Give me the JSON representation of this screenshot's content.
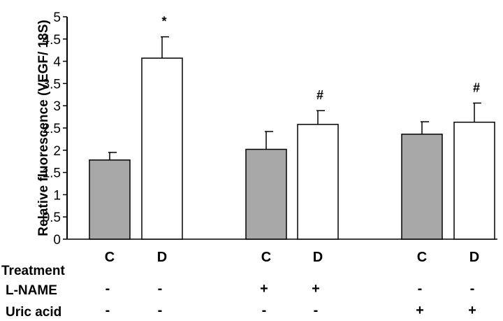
{
  "chart_data": {
    "type": "bar",
    "ylabel": "Relative fluorescence (VEGF/ 18S)",
    "ylim": [
      0,
      5
    ],
    "yticks": [
      "0",
      "0.5",
      "1",
      "1.5",
      "2",
      "2.5",
      "3",
      "3.5",
      "4",
      "4.5",
      "5"
    ],
    "grid": false,
    "bars": [
      {
        "category": "C",
        "value": 1.78,
        "error": 0.17,
        "fill": "#a8a8a8",
        "annotation": ""
      },
      {
        "category": "D",
        "value": 4.07,
        "error": 0.48,
        "fill": "#ffffff",
        "annotation": "*"
      },
      {
        "category": "C",
        "value": 2.02,
        "error": 0.4,
        "fill": "#a8a8a8",
        "annotation": ""
      },
      {
        "category": "D",
        "value": 2.58,
        "error": 0.31,
        "fill": "#ffffff",
        "annotation": "#"
      },
      {
        "category": "C",
        "value": 2.36,
        "error": 0.28,
        "fill": "#a8a8a8",
        "annotation": ""
      },
      {
        "category": "D",
        "value": 2.63,
        "error": 0.43,
        "fill": "#ffffff",
        "annotation": "#"
      }
    ],
    "treatment_table": {
      "header": "Treatment",
      "rows": [
        {
          "label": "L-NAME",
          "values": [
            "-",
            "-",
            "+",
            "+",
            "-",
            "-"
          ]
        },
        {
          "label": "Uric acid",
          "values": [
            "-",
            "-",
            "-",
            "-",
            "+",
            "+"
          ]
        }
      ]
    }
  },
  "colors": {
    "control_fill": "#a8a8a8",
    "diabetic_fill": "#ffffff",
    "stroke": "#000000"
  }
}
